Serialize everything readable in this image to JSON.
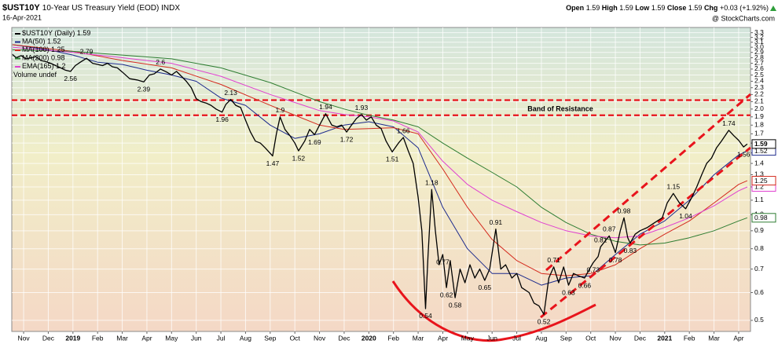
{
  "chart_data": {
    "type": "line",
    "ticker": "$UST10Y",
    "title": "10-Year US Treasury Yield (EOD) INDX",
    "date": "16-Apr-2021",
    "source": "@ StockCharts.com",
    "quote": [
      {
        "label": "Open",
        "value": 1.59
      },
      {
        "label": "High",
        "value": 1.59
      },
      {
        "label": "Low",
        "value": 1.59
      },
      {
        "label": "Close",
        "value": 1.59
      },
      {
        "label": "Chg",
        "value": "+0.03 (+1.92%)"
      }
    ],
    "volume_label": "Volume undef",
    "log_scale": true,
    "grid": true,
    "ylim": [
      0.465,
      3.415
    ],
    "yticks": [
      0.5,
      0.6,
      0.7,
      0.8,
      0.9,
      {
        "value": 1,
        "label": "1.0"
      },
      1.1,
      1.2,
      1.3,
      1.4,
      1.5,
      1.6,
      1.7,
      1.8,
      1.9,
      {
        "value": 2,
        "label": "2.0"
      },
      2.1,
      2.2,
      2.3,
      2.4,
      2.5,
      2.6,
      2.7,
      2.8,
      2.9,
      {
        "value": 3,
        "label": "3.0"
      },
      3.1,
      3.2,
      3.3
    ],
    "xlim": [
      -0.48,
      29.48
    ],
    "xticks": [
      {
        "value": 0,
        "label": "Nov"
      },
      {
        "value": 1,
        "label": "Dec"
      },
      {
        "value": 2,
        "label": "2019"
      },
      {
        "value": 3,
        "label": "Feb"
      },
      {
        "value": 4,
        "label": "Mar"
      },
      {
        "value": 5,
        "label": "Apr"
      },
      {
        "value": 6,
        "label": "May"
      },
      {
        "value": 7,
        "label": "Jun"
      },
      {
        "value": 8,
        "label": "Jul"
      },
      {
        "value": 9,
        "label": "Aug"
      },
      {
        "value": 10,
        "label": "Sep"
      },
      {
        "value": 11,
        "label": "Oct"
      },
      {
        "value": 12,
        "label": "Nov"
      },
      {
        "value": 13,
        "label": "Dec"
      },
      {
        "value": 14,
        "label": "2020"
      },
      {
        "value": 15,
        "label": "Feb"
      },
      {
        "value": 16,
        "label": "Mar"
      },
      {
        "value": 17,
        "label": "Apr"
      },
      {
        "value": 18,
        "label": "May"
      },
      {
        "value": 19,
        "label": "Jun"
      },
      {
        "value": 20,
        "label": "Jul"
      },
      {
        "value": 21,
        "label": "Aug"
      },
      {
        "value": 22,
        "label": "Sep"
      },
      {
        "value": 23,
        "label": "Oct"
      },
      {
        "value": 24,
        "label": "Nov"
      },
      {
        "value": 25,
        "label": "Dec"
      },
      {
        "value": 26,
        "label": "2021"
      },
      {
        "value": 27,
        "label": "Feb"
      },
      {
        "value": 28,
        "label": "Mar"
      },
      {
        "value": 29,
        "label": "Apr"
      }
    ],
    "series": [
      {
        "name": "$UST10Y (Daily)",
        "color": "#000000",
        "width": 1.3,
        "x": [
          -0.45,
          -0.3,
          -0.1,
          0.1,
          0.3,
          0.5,
          0.7,
          0.9,
          1.1,
          1.3,
          1.5,
          1.7,
          1.9,
          2.1,
          2.3,
          2.55,
          2.8,
          3.0,
          3.2,
          3.4,
          3.6,
          3.8,
          4.0,
          4.3,
          4.6,
          4.87,
          5.1,
          5.3,
          5.55,
          5.8,
          6.0,
          6.2,
          6.4,
          6.6,
          6.8,
          7.0,
          7.2,
          7.4,
          7.6,
          7.8,
          8.05,
          8.2,
          8.4,
          8.6,
          8.8,
          9.0,
          9.2,
          9.4,
          9.6,
          9.8,
          10.1,
          10.25,
          10.4,
          10.6,
          10.8,
          11.0,
          11.15,
          11.4,
          11.6,
          11.8,
          12.0,
          12.25,
          12.5,
          12.7,
          12.9,
          13.1,
          13.3,
          13.5,
          13.7,
          13.9,
          14.1,
          14.3,
          14.5,
          14.7,
          14.95,
          15.2,
          15.4,
          15.6,
          15.8,
          16.0,
          16.15,
          16.3,
          16.4,
          16.55,
          16.7,
          16.85,
          17.0,
          17.15,
          17.3,
          17.5,
          17.7,
          17.9,
          18.1,
          18.3,
          18.5,
          18.7,
          18.9,
          19.15,
          19.35,
          19.55,
          19.8,
          20.0,
          20.2,
          20.5,
          20.7,
          20.9,
          21.1,
          21.3,
          21.5,
          21.7,
          21.9,
          22.1,
          22.3,
          22.5,
          22.75,
          22.95,
          23.1,
          23.3,
          23.4,
          23.75,
          24.0,
          24.2,
          24.35,
          24.5,
          24.6,
          24.8,
          25.0,
          25.3,
          25.6,
          25.9,
          26.1,
          26.35,
          26.6,
          26.85,
          27.1,
          27.3,
          27.5,
          27.7,
          27.9,
          28.1,
          28.3,
          28.6,
          28.8,
          29.0,
          29.2,
          29.35
        ],
        "values": [
          2.86,
          2.8,
          2.84,
          2.78,
          2.8,
          2.82,
          2.75,
          2.73,
          2.7,
          2.66,
          2.62,
          2.58,
          2.56,
          2.66,
          2.72,
          2.79,
          2.7,
          2.68,
          2.66,
          2.7,
          2.64,
          2.62,
          2.55,
          2.44,
          2.42,
          2.39,
          2.5,
          2.52,
          2.6,
          2.55,
          2.5,
          2.56,
          2.48,
          2.4,
          2.3,
          2.14,
          2.1,
          2.08,
          2.05,
          2.0,
          1.96,
          2.06,
          2.13,
          2.05,
          2.02,
          1.86,
          1.72,
          1.62,
          1.6,
          1.55,
          1.47,
          1.7,
          1.9,
          1.75,
          1.68,
          1.6,
          1.52,
          1.62,
          1.75,
          1.69,
          1.8,
          1.94,
          1.8,
          1.78,
          1.8,
          1.72,
          1.8,
          1.88,
          1.93,
          1.86,
          1.9,
          1.8,
          1.76,
          1.62,
          1.51,
          1.6,
          1.66,
          1.52,
          1.4,
          1.12,
          0.9,
          0.54,
          0.76,
          1.18,
          0.9,
          0.72,
          0.77,
          0.62,
          0.74,
          0.58,
          0.7,
          0.64,
          0.72,
          0.66,
          0.7,
          0.65,
          0.7,
          0.91,
          0.7,
          0.72,
          0.66,
          0.68,
          0.62,
          0.6,
          0.56,
          0.55,
          0.52,
          0.66,
          0.71,
          0.64,
          0.71,
          0.63,
          0.68,
          0.67,
          0.66,
          0.7,
          0.73,
          0.76,
          0.81,
          0.87,
          0.78,
          0.9,
          0.98,
          0.86,
          0.83,
          0.88,
          0.9,
          0.92,
          0.95,
          0.98,
          1.08,
          1.15,
          1.08,
          1.04,
          1.12,
          1.2,
          1.3,
          1.4,
          1.45,
          1.55,
          1.62,
          1.74,
          1.68,
          1.63,
          1.56,
          1.59
        ]
      },
      {
        "name": "MA(50)",
        "color": "#1c2a8c",
        "width": 1,
        "x": [
          -0.45,
          1,
          2,
          3,
          4,
          5,
          6,
          7,
          8,
          9,
          10,
          11,
          12,
          13,
          14,
          15,
          16,
          17,
          18,
          19,
          20,
          21,
          22,
          23,
          24,
          25,
          26,
          27,
          28,
          29,
          29.35
        ],
        "values": [
          3.05,
          2.95,
          2.85,
          2.72,
          2.68,
          2.58,
          2.5,
          2.4,
          2.15,
          2.05,
          1.8,
          1.65,
          1.7,
          1.8,
          1.84,
          1.78,
          1.55,
          1.05,
          0.8,
          0.68,
          0.68,
          0.63,
          0.66,
          0.67,
          0.77,
          0.88,
          0.96,
          1.1,
          1.3,
          1.48,
          1.52
        ]
      },
      {
        "name": "MA(100)",
        "color": "#d42a1e",
        "width": 1,
        "x": [
          -0.45,
          2,
          4,
          6,
          8,
          10,
          12,
          13,
          14,
          15,
          16,
          17,
          18,
          19,
          20,
          21,
          22,
          23,
          24,
          25,
          26,
          27,
          28,
          29,
          29.35
        ],
        "values": [
          3.05,
          2.92,
          2.75,
          2.62,
          2.35,
          2.05,
          1.8,
          1.75,
          1.76,
          1.77,
          1.7,
          1.35,
          1.05,
          0.85,
          0.74,
          0.68,
          0.67,
          0.68,
          0.72,
          0.8,
          0.88,
          0.96,
          1.08,
          1.22,
          1.25
        ]
      },
      {
        "name": "MA(200)",
        "color": "#2e7d32",
        "width": 1,
        "x": [
          -0.45,
          2,
          4,
          6,
          8,
          10,
          12,
          13,
          14,
          15,
          16,
          17,
          18,
          19,
          20,
          21,
          22,
          23,
          24,
          25,
          26,
          27,
          28,
          29,
          29.35
        ],
        "values": [
          2.95,
          2.92,
          2.85,
          2.78,
          2.62,
          2.38,
          2.1,
          2.0,
          1.92,
          1.86,
          1.78,
          1.6,
          1.45,
          1.32,
          1.2,
          1.05,
          0.95,
          0.88,
          0.84,
          0.82,
          0.83,
          0.86,
          0.9,
          0.96,
          0.98
        ]
      },
      {
        "name": "EMA(165)",
        "color": "#e040d0",
        "width": 1,
        "x": [
          -0.45,
          2,
          4,
          6,
          8,
          10,
          12,
          13,
          14,
          15,
          16,
          17,
          18,
          19,
          20,
          21,
          22,
          23,
          24,
          25,
          26,
          27,
          28,
          29,
          29.35
        ],
        "values": [
          3.0,
          2.9,
          2.8,
          2.7,
          2.48,
          2.2,
          1.98,
          1.93,
          1.9,
          1.85,
          1.72,
          1.42,
          1.22,
          1.1,
          1.02,
          0.95,
          0.9,
          0.87,
          0.86,
          0.87,
          0.92,
          0.98,
          1.06,
          1.17,
          1.2
        ]
      }
    ],
    "annotations": {
      "x": [
        1.9,
        2.55,
        4.87,
        5.55,
        8.05,
        8.4,
        10.1,
        10.4,
        11.15,
        11.8,
        12.25,
        13.1,
        13.7,
        14.95,
        15.4,
        16.3,
        16.55,
        17.0,
        17.15,
        17.5,
        18.7,
        19.15,
        21.1,
        21.5,
        22.1,
        22.75,
        23.1,
        23.4,
        23.75,
        24.0,
        24.35,
        24.6,
        26.35,
        26.85,
        28.6,
        29.2
      ],
      "values": [
        2.56,
        2.79,
        2.39,
        2.6,
        1.96,
        2.13,
        1.47,
        1.9,
        1.52,
        1.69,
        1.94,
        1.72,
        1.93,
        1.51,
        1.66,
        0.54,
        1.18,
        0.77,
        0.62,
        0.58,
        0.65,
        0.91,
        0.52,
        0.71,
        0.63,
        0.66,
        0.73,
        0.81,
        0.87,
        0.78,
        0.98,
        0.83,
        1.15,
        1.04,
        1.74,
        1.56
      ]
    },
    "resistance": {
      "label": "Band of Resistance",
      "color": "#e8141c",
      "levels": [
        2.12,
        1.92
      ]
    }
  }
}
